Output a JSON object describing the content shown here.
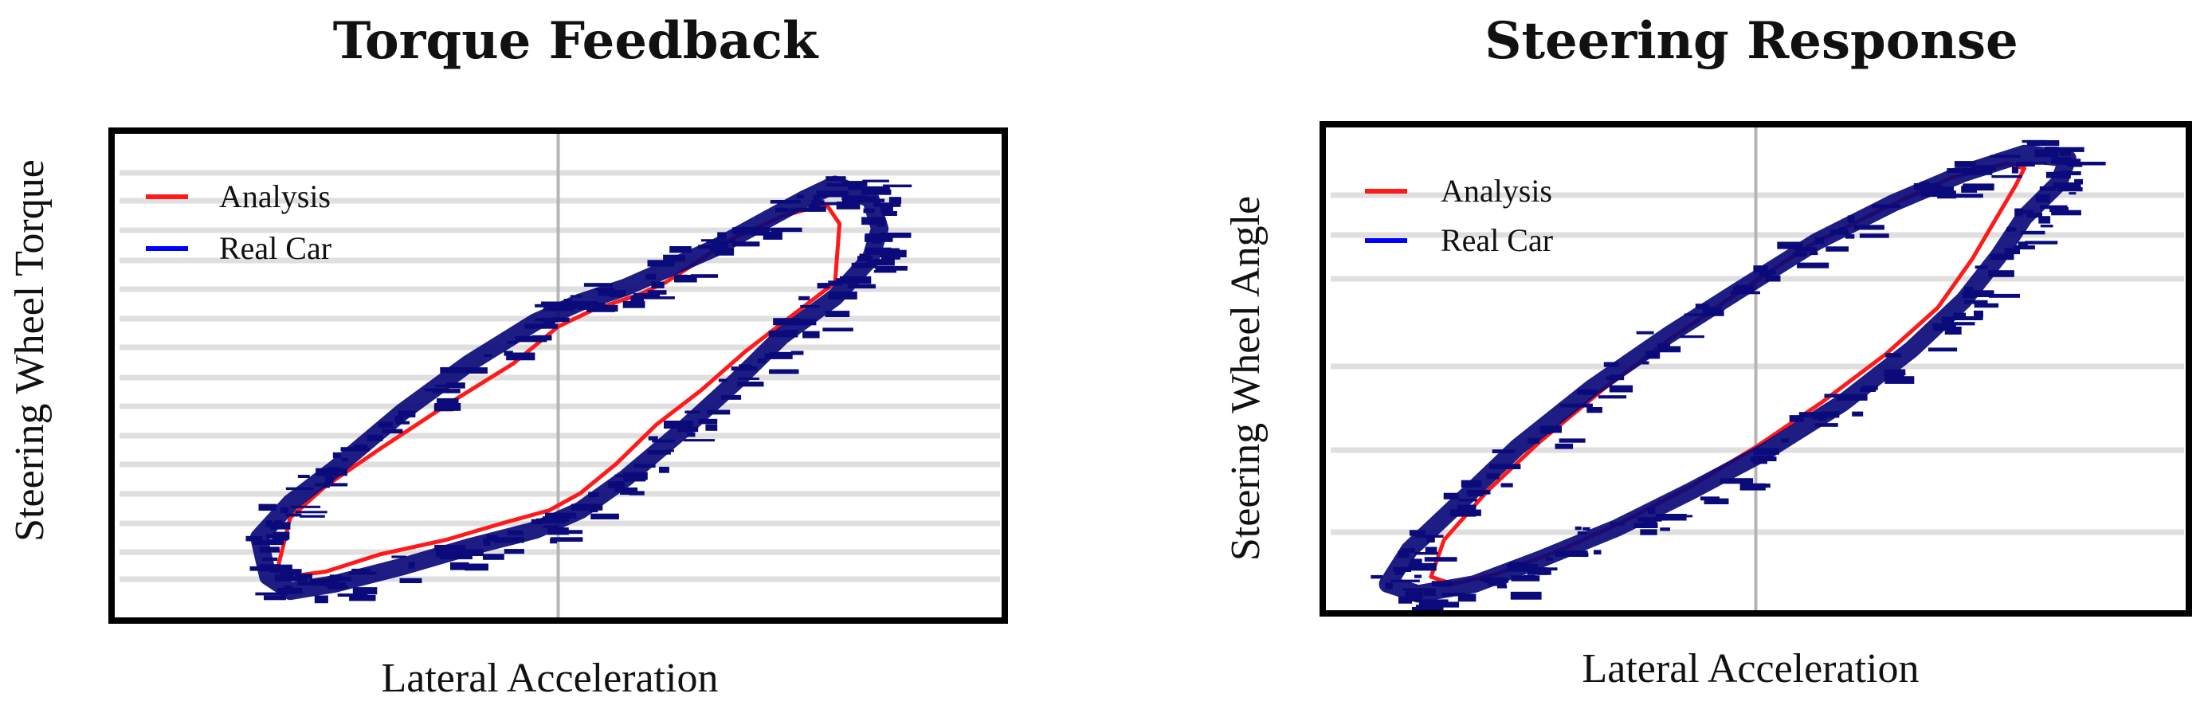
{
  "colors": {
    "analysis": "#ff1a1a",
    "real_car": "#0000ff",
    "real_car_trace": "#0a0a7a",
    "grid": "#cfcfcf",
    "axis": "#b5b5b5",
    "frame": "#000000"
  },
  "chart_data": [
    {
      "type": "line",
      "title": "Torque Feedback",
      "xlabel": "Lateral Acceleration",
      "ylabel": "Steering Wheel Torque",
      "legend": {
        "placement": "top-left"
      },
      "grid": true,
      "xlim": [
        -1,
        1
      ],
      "ylim": [
        -1,
        1
      ],
      "series": [
        {
          "name": "Analysis",
          "x": [
            -0.63,
            -0.6,
            -0.52,
            -0.4,
            -0.25,
            -0.12,
            -0.02,
            0.05,
            0.13,
            0.22,
            0.32,
            0.42,
            0.52,
            0.62,
            0.63,
            0.6,
            0.5,
            0.38,
            0.3,
            0.24,
            0.18,
            0.08,
            0.0,
            -0.1,
            -0.25,
            -0.4,
            -0.52,
            -0.6,
            -0.63
          ],
          "y": [
            -0.8,
            -0.82,
            -0.8,
            -0.73,
            -0.67,
            -0.6,
            -0.55,
            -0.48,
            -0.36,
            -0.2,
            -0.06,
            0.1,
            0.24,
            0.38,
            0.62,
            0.7,
            0.65,
            0.55,
            0.45,
            0.38,
            0.33,
            0.27,
            0.2,
            0.05,
            -0.12,
            -0.3,
            -0.45,
            -0.58,
            -0.8
          ]
        },
        {
          "name": "Real Car",
          "x": [
            -0.65,
            -0.6,
            -0.5,
            -0.35,
            -0.2,
            -0.05,
            0.05,
            0.15,
            0.28,
            0.4,
            0.5,
            0.62,
            0.7,
            0.72,
            0.7,
            0.62,
            0.55,
            0.45,
            0.35,
            0.25,
            0.15,
            0.05,
            -0.05,
            -0.2,
            -0.35,
            -0.5,
            -0.6,
            -0.67,
            -0.65
          ],
          "y": [
            -0.82,
            -0.88,
            -0.85,
            -0.78,
            -0.7,
            -0.63,
            -0.55,
            -0.42,
            -0.22,
            -0.02,
            0.16,
            0.32,
            0.48,
            0.6,
            0.72,
            0.78,
            0.72,
            0.62,
            0.52,
            0.44,
            0.36,
            0.3,
            0.22,
            0.05,
            -0.15,
            -0.38,
            -0.52,
            -0.66,
            -0.82
          ]
        }
      ]
    },
    {
      "type": "line",
      "title": "Steering Response",
      "xlabel": "Lateral Acceleration",
      "ylabel": "Steering Wheel Angle",
      "legend": {
        "placement": "top-left"
      },
      "grid": true,
      "xlim": [
        -1,
        1
      ],
      "ylim": [
        -1,
        1
      ],
      "series": [
        {
          "name": "Analysis",
          "x": [
            -0.75,
            -0.7,
            -0.6,
            -0.45,
            -0.3,
            -0.15,
            0.0,
            0.15,
            0.3,
            0.42,
            0.5,
            0.55,
            0.6,
            0.62,
            0.58,
            0.45,
            0.3,
            0.12,
            -0.05,
            -0.2,
            -0.35,
            -0.5,
            -0.62,
            -0.72,
            -0.75
          ],
          "y": [
            -0.85,
            -0.88,
            -0.84,
            -0.74,
            -0.62,
            -0.48,
            -0.32,
            -0.14,
            0.06,
            0.25,
            0.45,
            0.6,
            0.75,
            0.82,
            0.84,
            0.78,
            0.66,
            0.5,
            0.3,
            0.12,
            -0.08,
            -0.3,
            -0.5,
            -0.7,
            -0.85
          ]
        },
        {
          "name": "Real Car",
          "x": [
            -0.85,
            -0.78,
            -0.65,
            -0.5,
            -0.32,
            -0.15,
            0.02,
            0.2,
            0.36,
            0.48,
            0.56,
            0.62,
            0.7,
            0.72,
            0.62,
            0.48,
            0.32,
            0.14,
            -0.04,
            -0.2,
            -0.38,
            -0.55,
            -0.68,
            -0.8,
            -0.85
          ],
          "y": [
            -0.88,
            -0.92,
            -0.88,
            -0.78,
            -0.65,
            -0.5,
            -0.34,
            -0.14,
            0.08,
            0.28,
            0.46,
            0.62,
            0.76,
            0.86,
            0.88,
            0.8,
            0.68,
            0.52,
            0.32,
            0.14,
            -0.08,
            -0.32,
            -0.54,
            -0.74,
            -0.88
          ]
        }
      ]
    }
  ]
}
